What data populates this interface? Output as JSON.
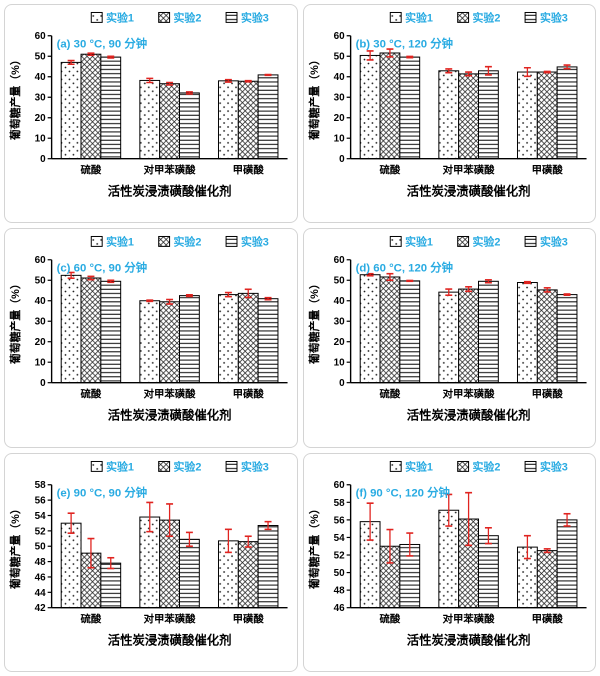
{
  "page": {
    "background": "#ffffff"
  },
  "colors": {
    "accent_cyan": "#29ABE2",
    "error_red": "#E02420",
    "bar_outline": "#000000",
    "pattern_ink": "#1a1a1a",
    "axis_black": "#000000",
    "panel_border": "#d4d4d4"
  },
  "chart_data": [
    {
      "type": "bar",
      "panel": "a",
      "title": "(a) 30 °C, 90 分钟",
      "xlabel": "活性炭浸渍磺酸催化剂",
      "ylabel": "葡萄糖产量（%）",
      "ylim": [
        0,
        60
      ],
      "ytick_step": 10,
      "grid": false,
      "legend_position": "top",
      "categories": [
        "硫酸",
        "对甲苯磺酸",
        "甲磺酸"
      ],
      "series": [
        {
          "name": "实验1",
          "pattern": "dots",
          "values": [
            47.0,
            38.2,
            38.0
          ],
          "errors": [
            0.9,
            1.0,
            0.6
          ]
        },
        {
          "name": "实验2",
          "pattern": "crosshatch",
          "values": [
            51.0,
            36.6,
            37.8
          ],
          "errors": [
            0.5,
            0.6,
            0.3
          ]
        },
        {
          "name": "实验3",
          "pattern": "hlines",
          "values": [
            49.6,
            32.1,
            40.9
          ],
          "errors": [
            0.4,
            0.5,
            0.2
          ]
        }
      ]
    },
    {
      "type": "bar",
      "panel": "b",
      "title": "(b) 30 °C, 120 分钟",
      "xlabel": "活性炭浸渍磺酸催化剂",
      "ylabel": "葡萄糖产量（%）",
      "ylim": [
        0,
        60
      ],
      "ytick_step": 10,
      "grid": false,
      "legend_position": "top",
      "categories": [
        "硫酸",
        "对甲苯磺酸",
        "甲磺酸"
      ],
      "series": [
        {
          "name": "实验1",
          "pattern": "dots",
          "values": [
            50.4,
            42.9,
            42.3
          ],
          "errors": [
            2.2,
            0.9,
            2.1
          ]
        },
        {
          "name": "实验2",
          "pattern": "crosshatch",
          "values": [
            51.6,
            41.4,
            42.3
          ],
          "errors": [
            1.9,
            0.9,
            0.3
          ]
        },
        {
          "name": "实验3",
          "pattern": "hlines",
          "values": [
            49.6,
            42.9,
            44.8
          ],
          "errors": [
            0.3,
            2.0,
            0.9
          ]
        }
      ]
    },
    {
      "type": "bar",
      "panel": "c",
      "title": "(c) 60 °C, 90 分钟",
      "xlabel": "活性炭浸渍磺酸催化剂",
      "ylabel": "葡萄糖产量（%）",
      "ylim": [
        0,
        60
      ],
      "ytick_step": 10,
      "grid": false,
      "legend_position": "top",
      "categories": [
        "硫酸",
        "对甲苯磺酸",
        "甲磺酸"
      ],
      "series": [
        {
          "name": "实验1",
          "pattern": "dots",
          "values": [
            52.4,
            40.0,
            43.0
          ],
          "errors": [
            1.4,
            0.3,
            1.0
          ]
        },
        {
          "name": "实验2",
          "pattern": "crosshatch",
          "values": [
            51.1,
            39.5,
            43.6
          ],
          "errors": [
            0.8,
            1.1,
            2.0
          ]
        },
        {
          "name": "实验3",
          "pattern": "hlines",
          "values": [
            49.5,
            42.5,
            41.0
          ],
          "errors": [
            0.5,
            0.4,
            0.5
          ]
        }
      ]
    },
    {
      "type": "bar",
      "panel": "d",
      "title": "(d) 60 °C, 120 分钟",
      "xlabel": "活性炭浸渍磺酸催化剂",
      "ylabel": "葡萄糖产量（%）",
      "ylim": [
        0,
        60
      ],
      "ytick_step": 10,
      "grid": false,
      "legend_position": "top",
      "categories": [
        "硫酸",
        "对甲苯磺酸",
        "甲磺酸"
      ],
      "series": [
        {
          "name": "实验1",
          "pattern": "dots",
          "values": [
            52.7,
            44.2,
            48.9
          ],
          "errors": [
            0.5,
            1.5,
            0.4
          ]
        },
        {
          "name": "实验2",
          "pattern": "crosshatch",
          "values": [
            51.6,
            45.7,
            45.3
          ],
          "errors": [
            1.6,
            1.1,
            1.0
          ]
        },
        {
          "name": "实验3",
          "pattern": "hlines",
          "values": [
            49.7,
            49.5,
            43.0
          ],
          "errors": [
            0.2,
            0.7,
            0.3
          ]
        }
      ]
    },
    {
      "type": "bar",
      "panel": "e",
      "title": "(e) 90 °C, 90 分钟",
      "xlabel": "活性炭浸渍磺酸催化剂",
      "ylabel": "葡萄糖产量（%）",
      "ylim": [
        42,
        58
      ],
      "ytick_step": 2,
      "grid": false,
      "legend_position": "top",
      "categories": [
        "硫酸",
        "对甲苯磺酸",
        "甲磺酸"
      ],
      "series": [
        {
          "name": "实验1",
          "pattern": "dots",
          "values": [
            53.0,
            53.8,
            50.7
          ],
          "errors": [
            1.3,
            1.9,
            1.5
          ]
        },
        {
          "name": "实验2",
          "pattern": "crosshatch",
          "values": [
            49.1,
            53.4,
            50.6
          ],
          "errors": [
            1.9,
            2.1,
            0.7
          ]
        },
        {
          "name": "实验3",
          "pattern": "hlines",
          "values": [
            47.8,
            50.9,
            52.7
          ],
          "errors": [
            0.7,
            0.9,
            0.5
          ]
        }
      ]
    },
    {
      "type": "bar",
      "panel": "f",
      "title": "(f) 90 °C, 120 分钟",
      "xlabel": "活性炭浸渍磺酸催化剂",
      "ylabel": "葡萄糖产量（%）",
      "ylim": [
        46,
        60
      ],
      "ytick_step": 2,
      "grid": false,
      "legend_position": "top",
      "categories": [
        "硫酸",
        "对甲苯磺酸",
        "甲磺酸"
      ],
      "series": [
        {
          "name": "实验1",
          "pattern": "dots",
          "values": [
            55.8,
            57.1,
            52.9
          ],
          "errors": [
            2.1,
            1.8,
            1.3
          ]
        },
        {
          "name": "实验2",
          "pattern": "crosshatch",
          "values": [
            53.0,
            56.1,
            52.5
          ],
          "errors": [
            1.9,
            3.0,
            0.2
          ]
        },
        {
          "name": "实验3",
          "pattern": "hlines",
          "values": [
            53.2,
            54.2,
            56.0
          ],
          "errors": [
            1.3,
            0.9,
            0.7
          ]
        }
      ]
    }
  ]
}
